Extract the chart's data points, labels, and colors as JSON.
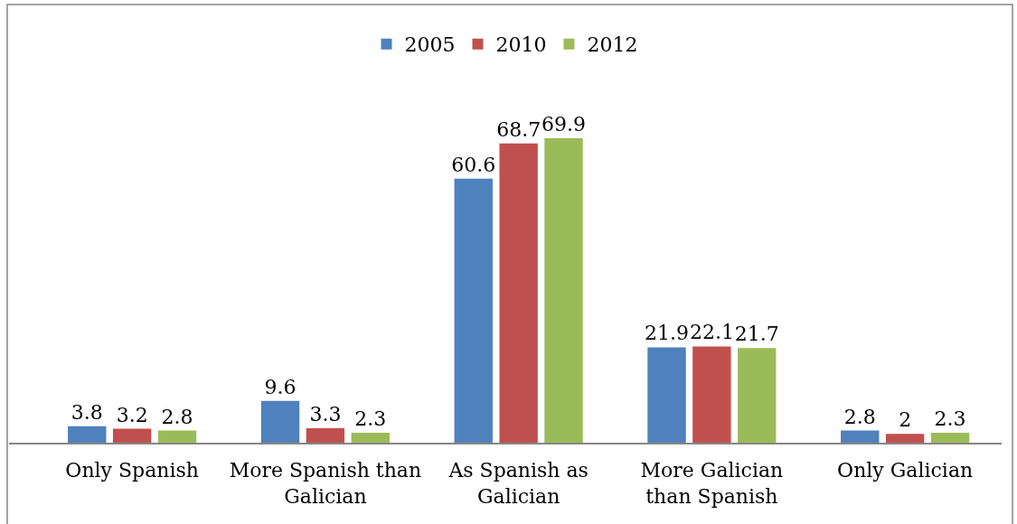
{
  "chart_data": {
    "type": "bar",
    "categories": [
      "Only Spanish",
      "More Spanish than Galician",
      "As Spanish as Galician",
      "More Galician than Spanish",
      "Only Galician"
    ],
    "series": [
      {
        "name": "2005",
        "color": "#4f81bd",
        "values": [
          3.8,
          9.6,
          60.6,
          21.9,
          2.8
        ]
      },
      {
        "name": "2010",
        "color": "#c0504d",
        "values": [
          3.2,
          3.3,
          68.7,
          22.1,
          2
        ]
      },
      {
        "name": "2012",
        "color": "#9bbb59",
        "values": [
          2.8,
          2.3,
          69.9,
          21.7,
          2.3
        ]
      }
    ],
    "data_labels": true,
    "legend": "top"
  }
}
